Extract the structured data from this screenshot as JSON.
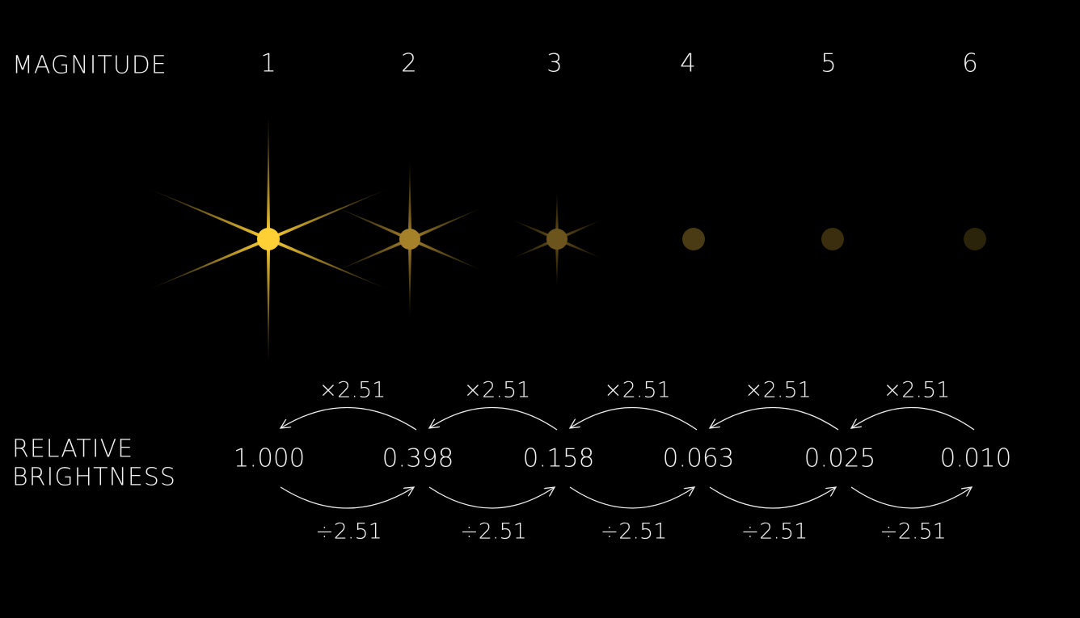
{
  "labels": {
    "magnitude": "MAGNITUDE",
    "brightness": [
      "RELATIVE",
      "BRIGHTNESS"
    ]
  },
  "magnitudes": [
    "1",
    "2",
    "3",
    "4",
    "5",
    "6"
  ],
  "brightness": [
    "1.000",
    "0.398",
    "0.158",
    "0.063",
    "0.025",
    "0.010"
  ],
  "multiply_labels": [
    "×2.51",
    "×2.51",
    "×2.51",
    "×2.51",
    "×2.51"
  ],
  "divide_labels": [
    "÷2.51",
    "÷2.51",
    "÷2.51",
    "÷2.51",
    "÷2.51"
  ]
}
